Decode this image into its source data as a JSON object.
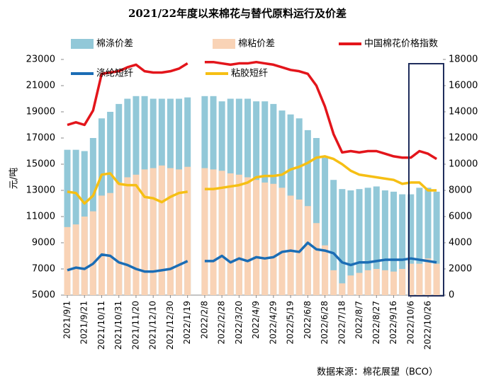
{
  "chart_data": {
    "type": "bar-line",
    "title": "2021/22年度以来棉花与替代原料运行及价差",
    "y_label": "元/吨",
    "source": "数据来源：棉花展望（BCO）",
    "legend": "top",
    "categories": [
      "2021/9/1",
      null,
      "2021/9/21",
      null,
      "2021/10/11",
      null,
      "2021/10/31",
      null,
      "2021/11/20",
      null,
      "2021/12/10",
      null,
      "2021/12/30",
      null,
      "2022/1/19",
      null,
      "2022/2/8",
      null,
      "2022/2/28",
      null,
      "2022/3/20",
      null,
      "2022/4/9",
      null,
      "2022/4/29",
      null,
      "2022/5/19",
      null,
      "2022/6/8",
      null,
      "2022/6/28",
      null,
      "2022/7/18",
      null,
      "2022/8/7",
      null,
      "2022/8/27",
      null,
      "2022/9/16",
      null,
      "2022/10/6",
      null,
      "2022/10/26",
      null
    ],
    "ylim": [
      5000,
      23000
    ],
    "yticks": [
      5000,
      7000,
      9000,
      11000,
      13000,
      15000,
      17000,
      19000,
      21000,
      23000
    ],
    "y2lim": [
      0,
      18000
    ],
    "y2ticks": [
      0,
      2000,
      4000,
      6000,
      8000,
      10000,
      12000,
      14000,
      16000,
      18000
    ],
    "series": [
      {
        "name": "棉涤价差",
        "kind": "bar",
        "axis": "y2",
        "color": "#92c8d8",
        "values": [
          11100,
          11100,
          11000,
          12000,
          13500,
          14000,
          14600,
          15000,
          15200,
          15200,
          15000,
          15000,
          15000,
          15000,
          15100,
          null,
          15200,
          15200,
          14800,
          15000,
          15000,
          15000,
          14800,
          14800,
          14600,
          14100,
          13800,
          13500,
          12600,
          12000,
          10500,
          8800,
          8100,
          8000,
          8100,
          8200,
          8300,
          8000,
          7900,
          7700,
          7700,
          8200,
          8200,
          7900
        ]
      },
      {
        "name": "棉粘价差",
        "kind": "bar",
        "axis": "y2",
        "color": "#f9d3b6",
        "values": [
          5200,
          5400,
          6000,
          6400,
          7600,
          7800,
          8600,
          9000,
          9200,
          9600,
          9700,
          9900,
          9700,
          9600,
          9800,
          null,
          9700,
          9600,
          9500,
          9300,
          9200,
          9000,
          8800,
          8600,
          8500,
          8200,
          7600,
          7300,
          6800,
          5500,
          3800,
          1900,
          900,
          1500,
          1700,
          1900,
          2000,
          1900,
          1800,
          2000,
          2400,
          2400,
          2800,
          2400
        ]
      },
      {
        "name": "中国棉花价格指数",
        "kind": "line",
        "color": "#e3151b",
        "values": [
          18000,
          18200,
          18000,
          19100,
          21900,
          22000,
          22100,
          22400,
          22600,
          22100,
          22000,
          22000,
          22100,
          22300,
          22700,
          null,
          22800,
          22800,
          22700,
          22600,
          22700,
          22700,
          22800,
          22700,
          22600,
          22400,
          22200,
          22100,
          21900,
          21000,
          19400,
          17300,
          15900,
          16000,
          15900,
          16000,
          16000,
          15800,
          15600,
          15500,
          15500,
          16000,
          15800,
          15400
        ]
      },
      {
        "name": "涤纶短纤",
        "kind": "line",
        "color": "#1b6db5",
        "values": [
          6900,
          7100,
          7000,
          7400,
          8100,
          8000,
          7500,
          7300,
          7000,
          6800,
          6800,
          6900,
          7000,
          7300,
          7600,
          null,
          7600,
          7600,
          8000,
          7500,
          7800,
          7600,
          7900,
          7800,
          7900,
          8300,
          8400,
          8300,
          9000,
          8500,
          8400,
          8200,
          7500,
          7300,
          7500,
          7500,
          7600,
          7700,
          7700,
          7700,
          7800,
          7700,
          7600,
          7500
        ]
      },
      {
        "name": "粘胶短纤",
        "kind": "line",
        "color": "#f6bf14",
        "values": [
          12900,
          12800,
          12000,
          12600,
          14200,
          14300,
          13500,
          13400,
          13400,
          12500,
          12400,
          12100,
          12500,
          12800,
          12900,
          null,
          13100,
          13100,
          13200,
          13300,
          13400,
          13600,
          14000,
          14100,
          14100,
          14200,
          14600,
          14800,
          15100,
          15500,
          15600,
          15400,
          15000,
          14500,
          14200,
          14100,
          14000,
          13900,
          13800,
          13500,
          13600,
          13600,
          13000,
          13000
        ]
      }
    ]
  }
}
